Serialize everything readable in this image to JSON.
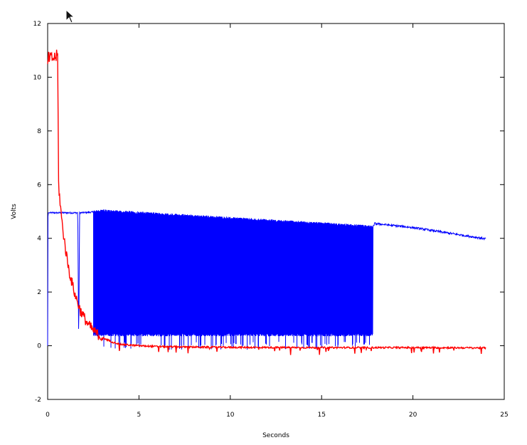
{
  "chart_data": {
    "type": "line",
    "title": "",
    "xlabel": "Seconds",
    "ylabel": "Volts",
    "xlim": [
      0,
      25
    ],
    "ylim": [
      -2,
      12
    ],
    "x_ticks": [
      0,
      5,
      10,
      15,
      20,
      25
    ],
    "x_tick_labels": [
      "0",
      "5",
      "10",
      "15",
      "20",
      "25"
    ],
    "y_ticks": [
      -2,
      0,
      2,
      4,
      6,
      8,
      10,
      12
    ],
    "y_tick_labels": [
      "-2",
      "0",
      "2",
      "4",
      "6",
      "8",
      "10",
      "12"
    ],
    "grid": false,
    "legend": "none",
    "series": [
      {
        "color": "#ff0000",
        "description_points": {
          "x": [
            0,
            0.05,
            0.3,
            0.55,
            0.6,
            0.7,
            0.8,
            1.0,
            1.2,
            1.5,
            1.8,
            2.2,
            2.6,
            3.0,
            3.5,
            4.0,
            5.0,
            6.0,
            8.0,
            10.0,
            15.0,
            18.0,
            20.0,
            24.0
          ],
          "y": [
            10.5,
            10.7,
            10.7,
            10.8,
            6.0,
            5.2,
            4.5,
            3.5,
            2.7,
            1.9,
            1.3,
            0.8,
            0.5,
            0.3,
            0.15,
            0.05,
            0.0,
            -0.03,
            -0.05,
            -0.06,
            -0.07,
            -0.07,
            -0.07,
            -0.08
          ]
        }
      },
      {
        "color": "#0000ff",
        "description_points": {
          "x": [
            0,
            0.02,
            0.1,
            1.0,
            1.65,
            1.7,
            1.75,
            2.6,
            3.0,
            5.0,
            10.0,
            15.0,
            17.8,
            17.9,
            20.0,
            24.0
          ],
          "y": [
            0.0,
            4.95,
            4.95,
            4.95,
            4.95,
            0.0,
            4.95,
            4.98,
            5.0,
            4.92,
            4.72,
            4.52,
            4.4,
            4.55,
            4.4,
            3.98
          ],
          "oscillation_band": {
            "x_start": 2.5,
            "x_end": 17.8,
            "low": 0.4,
            "high": 5.0,
            "low_spike_min": -0.15
          }
        }
      }
    ]
  },
  "colors": {
    "axis": "#000000",
    "red_series": "#ff0000",
    "blue_series": "#0000ff",
    "background": "#ffffff"
  },
  "cursor": {
    "icon": "mouse-pointer-icon"
  }
}
